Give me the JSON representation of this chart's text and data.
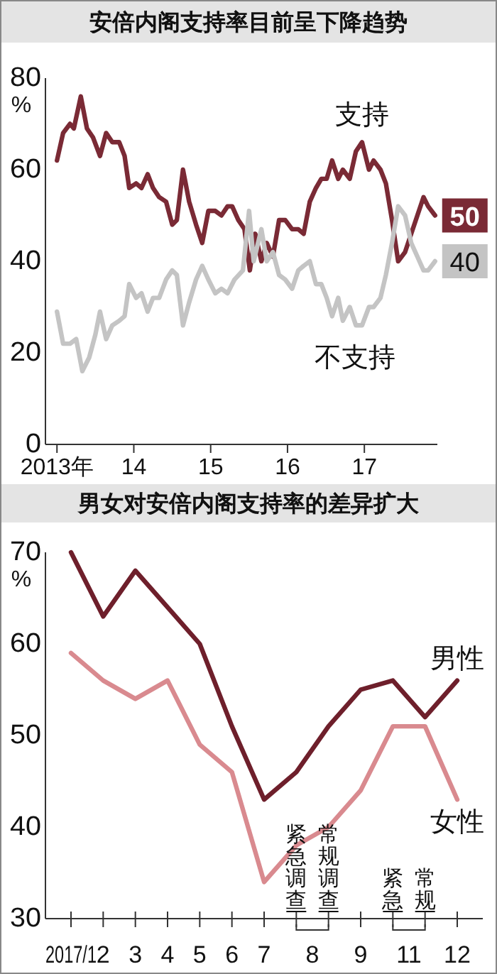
{
  "chart_data": [
    {
      "type": "line",
      "title": "安倍内阁支持率目前呈下降趋势",
      "ylabel": "%",
      "xlim": [
        2012.85,
        2017.95
      ],
      "ylim": [
        0,
        80
      ],
      "yticks": [
        0,
        20,
        40,
        60,
        80
      ],
      "xticks": [
        {
          "value": 2013,
          "label": "2013年"
        },
        {
          "value": 2014,
          "label": "14"
        },
        {
          "value": 2015,
          "label": "15"
        },
        {
          "value": 2016,
          "label": "16"
        },
        {
          "value": 2017,
          "label": "17"
        }
      ],
      "grid": false,
      "marker": "none",
      "line_style": "solid",
      "series": [
        {
          "name": "支持",
          "color": "#7a2a35",
          "x": [
            2013.0,
            2013.08,
            2013.17,
            2013.22,
            2013.31,
            2013.39,
            2013.47,
            2013.56,
            2013.64,
            2013.72,
            2013.81,
            2013.88,
            2013.94,
            2014.03,
            2014.1,
            2014.18,
            2014.25,
            2014.33,
            2014.42,
            2014.5,
            2014.56,
            2014.64,
            2014.72,
            2014.81,
            2014.89,
            2014.97,
            2015.06,
            2015.14,
            2015.22,
            2015.28,
            2015.36,
            2015.44,
            2015.51,
            2015.58,
            2015.66,
            2015.73,
            2015.81,
            2015.89,
            2015.97,
            2016.06,
            2016.14,
            2016.21,
            2016.29,
            2016.37,
            2016.44,
            2016.51,
            2016.58,
            2016.66,
            2016.72,
            2016.81,
            2016.89,
            2016.97,
            2017.06,
            2017.12,
            2017.21,
            2017.28,
            2017.36,
            2017.44,
            2017.53,
            2017.61,
            2017.69,
            2017.77,
            2017.83,
            2017.92
          ],
          "values": [
            62,
            68,
            70,
            69,
            76,
            69,
            67,
            63,
            68,
            66,
            66,
            63,
            56,
            57,
            56,
            59,
            56,
            54,
            53,
            48,
            49,
            60,
            53,
            48,
            44,
            51,
            51,
            50,
            52,
            52,
            49,
            47,
            38,
            46,
            40,
            44,
            41,
            49,
            49,
            47,
            47,
            46,
            53,
            56,
            58,
            58,
            62,
            58,
            60,
            58,
            64,
            66,
            60,
            62,
            60,
            57,
            49,
            40,
            42,
            46,
            50,
            54,
            52,
            50
          ],
          "value_labels": [
            null,
            null,
            null,
            null,
            null,
            null,
            null,
            null,
            null,
            null,
            null,
            null,
            null,
            null,
            null,
            null,
            null,
            null,
            null,
            null,
            null,
            null,
            null,
            null,
            null,
            null,
            null,
            null,
            null,
            null,
            null,
            null,
            null,
            null,
            null,
            null,
            null,
            null,
            null,
            null,
            null,
            null,
            null,
            null,
            null,
            null,
            null,
            null,
            null,
            null,
            null,
            null,
            null,
            null,
            null,
            null,
            null,
            null,
            null,
            null,
            null,
            null,
            null,
            "50"
          ]
        },
        {
          "name": "不支持",
          "color": "#c4c4c4",
          "x": [
            2013.0,
            2013.08,
            2013.17,
            2013.25,
            2013.33,
            2013.42,
            2013.5,
            2013.56,
            2013.64,
            2013.72,
            2013.81,
            2013.88,
            2013.94,
            2014.03,
            2014.1,
            2014.18,
            2014.25,
            2014.33,
            2014.42,
            2014.5,
            2014.56,
            2014.64,
            2014.72,
            2014.81,
            2014.89,
            2014.97,
            2015.06,
            2015.14,
            2015.22,
            2015.31,
            2015.42,
            2015.5,
            2015.56,
            2015.66,
            2015.73,
            2015.81,
            2015.89,
            2015.97,
            2016.06,
            2016.14,
            2016.21,
            2016.29,
            2016.37,
            2016.44,
            2016.51,
            2016.58,
            2016.66,
            2016.72,
            2016.81,
            2016.89,
            2016.97,
            2017.06,
            2017.12,
            2017.21,
            2017.28,
            2017.36,
            2017.44,
            2017.53,
            2017.61,
            2017.69,
            2017.77,
            2017.83,
            2017.92
          ],
          "values": [
            29,
            22,
            22,
            23,
            16,
            19,
            24,
            29,
            23,
            26,
            27,
            28,
            35,
            32,
            33,
            29,
            32,
            32,
            36,
            38,
            37,
            26,
            31,
            36,
            39,
            36,
            33,
            34,
            33,
            36,
            38,
            51,
            40,
            47,
            40,
            42,
            37,
            36,
            34,
            38,
            39,
            40,
            35,
            35,
            32,
            28,
            32,
            27,
            30,
            26,
            26,
            30,
            30,
            32,
            37,
            44,
            52,
            50,
            44,
            41,
            38,
            38,
            40
          ],
          "value_labels": [
            null,
            null,
            null,
            null,
            null,
            null,
            null,
            null,
            null,
            null,
            null,
            null,
            null,
            null,
            null,
            null,
            null,
            null,
            null,
            null,
            null,
            null,
            null,
            null,
            null,
            null,
            null,
            null,
            null,
            null,
            null,
            null,
            null,
            null,
            null,
            null,
            null,
            null,
            null,
            null,
            null,
            null,
            null,
            null,
            null,
            null,
            null,
            null,
            null,
            null,
            null,
            null,
            null,
            null,
            null,
            null,
            null,
            null,
            null,
            null,
            null,
            null,
            "40"
          ]
        }
      ]
    },
    {
      "type": "line",
      "title": "男女对安倍内阁支持率的差异扩大",
      "ylabel": "%",
      "ylim": [
        30,
        70
      ],
      "yticks": [
        30,
        40,
        50,
        60,
        70
      ],
      "categories": [
        "2017/1",
        "2",
        "3",
        "4",
        "5",
        "6",
        "7",
        null,
        null,
        "9",
        null,
        null,
        "12"
      ],
      "grid": false,
      "marker": "none",
      "line_style": "solid",
      "annotations": [
        "紧急调查",
        "常规调查",
        "紧急",
        "常规",
        "8",
        "11"
      ],
      "series": [
        {
          "name": "男性",
          "color": "#6e1f2b",
          "values": [
            70,
            63,
            68,
            64,
            60,
            51,
            43,
            46,
            51,
            55,
            56,
            52,
            56
          ]
        },
        {
          "name": "女性",
          "color": "#d98a8f",
          "values": [
            59,
            56,
            54,
            56,
            49,
            46,
            34,
            38,
            40,
            44,
            51,
            51,
            43
          ]
        }
      ]
    }
  ]
}
